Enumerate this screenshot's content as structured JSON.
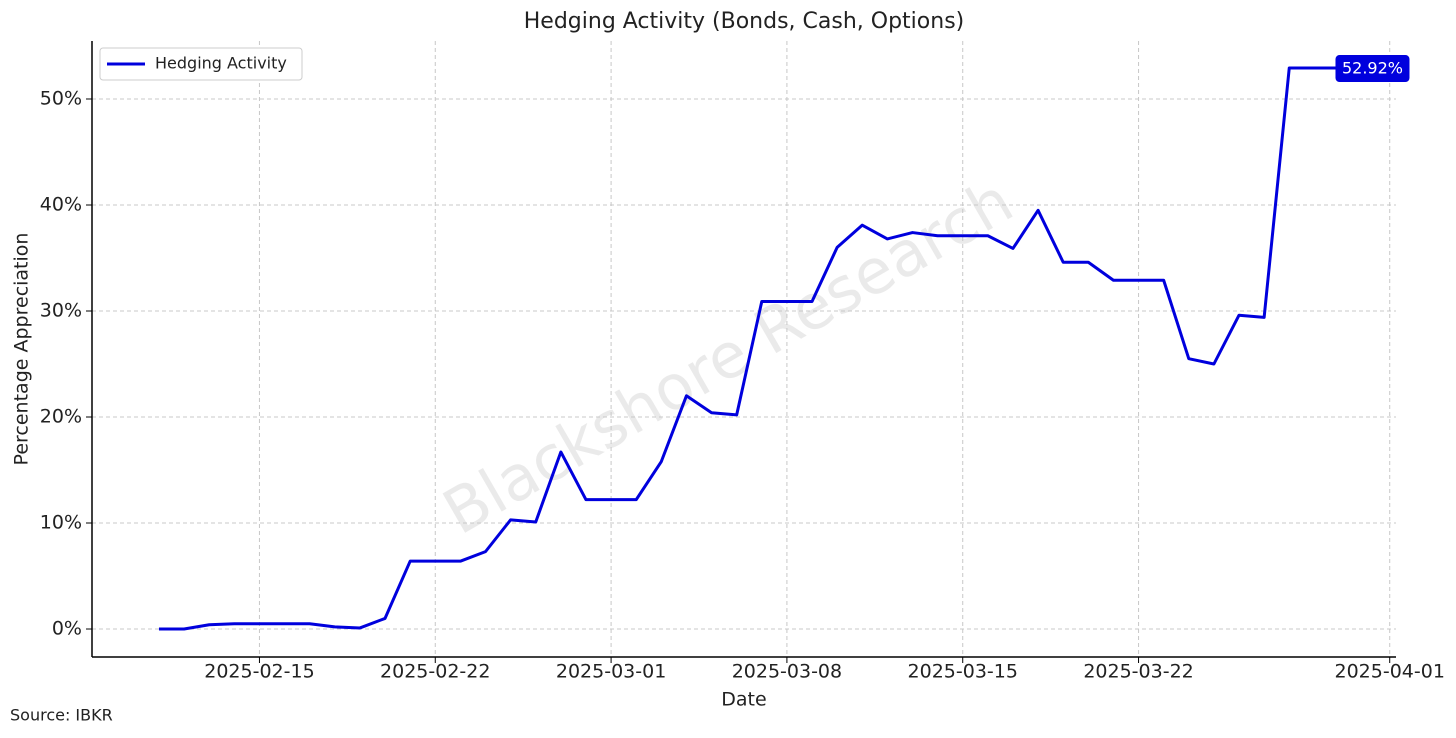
{
  "chart_data": {
    "type": "line",
    "title": "Hedging Activity (Bonds, Cash, Options)",
    "x_label": "Date",
    "y_label": "Percentage Appreciation",
    "source": "Source: IBKR",
    "watermark": "Blackshore Research",
    "x": [
      "2025-02-11",
      "2025-02-12",
      "2025-02-13",
      "2025-02-14",
      "2025-02-15",
      "2025-02-16",
      "2025-02-17",
      "2025-02-18",
      "2025-02-19",
      "2025-02-20",
      "2025-02-21",
      "2025-02-22",
      "2025-02-23",
      "2025-02-24",
      "2025-02-25",
      "2025-02-26",
      "2025-02-27",
      "2025-02-28",
      "2025-03-01",
      "2025-03-02",
      "2025-03-03",
      "2025-03-04",
      "2025-03-05",
      "2025-03-06",
      "2025-03-07",
      "2025-03-08",
      "2025-03-09",
      "2025-03-10",
      "2025-03-11",
      "2025-03-12",
      "2025-03-13",
      "2025-03-14",
      "2025-03-15",
      "2025-03-16",
      "2025-03-17",
      "2025-03-18",
      "2025-03-19",
      "2025-03-20",
      "2025-03-21",
      "2025-03-22",
      "2025-03-23",
      "2025-03-24",
      "2025-03-25",
      "2025-03-26",
      "2025-03-27",
      "2025-03-28",
      "2025-03-29",
      "2025-03-30"
    ],
    "series": [
      {
        "name": "Hedging Activity",
        "color": "#0000dd",
        "values": [
          0,
          0,
          0.4,
          0.5,
          0.5,
          0.5,
          0.5,
          0.2,
          0.1,
          1.0,
          6.4,
          6.4,
          6.4,
          7.3,
          10.3,
          10.1,
          16.7,
          12.2,
          12.2,
          12.2,
          15.8,
          22.0,
          20.4,
          20.2,
          30.9,
          30.9,
          30.9,
          36.0,
          38.1,
          36.8,
          37.4,
          37.1,
          37.1,
          37.1,
          35.9,
          39.5,
          34.6,
          34.6,
          32.9,
          32.9,
          32.9,
          25.5,
          25.0,
          29.6,
          29.4,
          52.92,
          52.92,
          52.92
        ],
        "value_labels": [
          null,
          null,
          null,
          null,
          null,
          null,
          null,
          null,
          null,
          null,
          null,
          null,
          null,
          null,
          null,
          null,
          null,
          null,
          null,
          null,
          null,
          null,
          null,
          null,
          null,
          null,
          null,
          null,
          null,
          null,
          null,
          null,
          null,
          null,
          null,
          null,
          null,
          null,
          null,
          null,
          null,
          null,
          null,
          null,
          null,
          null,
          null,
          "52.92%"
        ]
      }
    ],
    "xlim": [
      "2025-02-08T08:00",
      "2025-04-01T06:00"
    ],
    "xticks": [
      "2025-02-15",
      "2025-02-22",
      "2025-03-01",
      "2025-03-08",
      "2025-03-15",
      "2025-03-22",
      "2025-04-01"
    ],
    "ylim": [
      -2.64,
      55.47
    ],
    "yticks": [
      {
        "value": 0,
        "label": "0%"
      },
      {
        "value": 10,
        "label": "10%"
      },
      {
        "value": 20,
        "label": "20%"
      },
      {
        "value": 30,
        "label": "30%"
      },
      {
        "value": 40,
        "label": "40%"
      },
      {
        "value": 50,
        "label": "50%"
      }
    ],
    "grid": true,
    "legend": "upper left"
  }
}
